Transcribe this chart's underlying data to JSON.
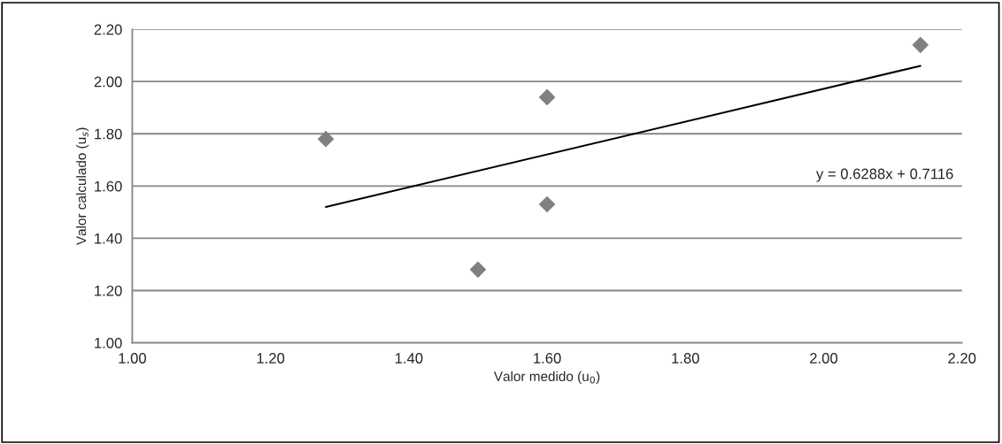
{
  "chart_data": {
    "type": "scatter",
    "xlabel": "Valor medido (u$_{0}$)",
    "ylabel": "Valor calculado (u$_{s}$)",
    "xlim": [
      1.0,
      2.2
    ],
    "xticks": [
      {
        "value": 1.0,
        "label": "1.00"
      },
      {
        "value": 1.2,
        "label": "1.20"
      },
      {
        "value": 1.4,
        "label": "1.40"
      },
      {
        "value": 1.6,
        "label": "1.60"
      },
      {
        "value": 1.8,
        "label": "1.80"
      },
      {
        "value": 2.0,
        "label": "2.00"
      },
      {
        "value": 2.2,
        "label": "2.20"
      }
    ],
    "ylim": [
      1.0,
      2.2
    ],
    "yticks": [
      {
        "value": 1.0,
        "label": "1.00"
      },
      {
        "value": 1.2,
        "label": "1.20"
      },
      {
        "value": 1.4,
        "label": "1.40"
      },
      {
        "value": 1.6,
        "label": "1.60"
      },
      {
        "value": 1.8,
        "label": "1.80"
      },
      {
        "value": 2.0,
        "label": "2.00"
      },
      {
        "value": 2.2,
        "label": "2.20"
      }
    ],
    "grid": "y",
    "marker": "diamond",
    "series": [
      {
        "color": "#808080",
        "x": [
          1.28,
          1.5,
          1.6,
          1.6,
          2.14
        ],
        "values": [
          1.78,
          1.28,
          1.94,
          1.53,
          2.14
        ]
      },
      {
        "type": "line",
        "color": "#000000",
        "marker": "none",
        "x": [
          1.28,
          2.14
        ],
        "values": [
          1.52,
          2.06
        ]
      }
    ],
    "annotations": [
      "y = 0.6288x + 0.7116"
    ]
  }
}
